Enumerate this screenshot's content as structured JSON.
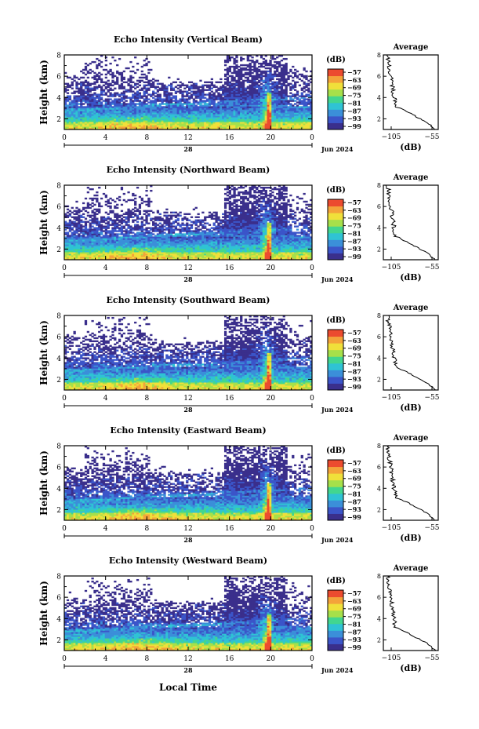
{
  "figure": {
    "x_axis_title": "Local Time",
    "date_label": "Jun 2024",
    "colorbar_unit": "(dB)",
    "colorbar_ticks": [
      "−57",
      "−63",
      "−69",
      "−75",
      "−81",
      "−87",
      "−93",
      "−99"
    ],
    "profile_title": "Average",
    "profile_xlabel": "(dB)"
  },
  "chart_data": [
    {
      "type": "heatmap",
      "title": "Echo Intensity (Vertical Beam)",
      "ylabel": "Height (km)",
      "x_ticks": [
        "0",
        "4",
        "8",
        "12",
        "16",
        "20",
        "0"
      ],
      "x_day_label": "28",
      "y_ticks": [
        "2",
        "4",
        "6",
        "8"
      ],
      "xlim": [
        0,
        24
      ],
      "ylim": [
        1,
        8
      ],
      "zlim": [
        -99,
        -57
      ],
      "colormap": [
        "#3a2f8c",
        "#3b55c9",
        "#3b8fd9",
        "#2fc3d4",
        "#42d68f",
        "#a6e04a",
        "#f0e03a",
        "#f4a33a",
        "#ec4b2f"
      ],
      "profile": {
        "xlim": [
          -105,
          -55
        ],
        "x_ticks": [
          "−105",
          "−55"
        ],
        "y_ticks": [
          "2",
          "4",
          "6",
          "8"
        ]
      }
    },
    {
      "type": "heatmap",
      "title": "Echo Intensity (Northward Beam)",
      "ylabel": "Height (km)",
      "x_ticks": [
        "0",
        "4",
        "8",
        "12",
        "16",
        "20",
        "0"
      ],
      "x_day_label": "28",
      "y_ticks": [
        "2",
        "4",
        "6",
        "8"
      ],
      "xlim": [
        0,
        24
      ],
      "ylim": [
        1,
        8
      ],
      "zlim": [
        -99,
        -57
      ],
      "profile": {
        "xlim": [
          -105,
          -55
        ],
        "x_ticks": [
          "−105",
          "−55"
        ],
        "y_ticks": [
          "2",
          "4",
          "6",
          "8"
        ]
      }
    },
    {
      "type": "heatmap",
      "title": "Echo Intensity (Southward Beam)",
      "ylabel": "Height (km)",
      "x_ticks": [
        "0",
        "4",
        "8",
        "12",
        "16",
        "20",
        "0"
      ],
      "x_day_label": "28",
      "y_ticks": [
        "2",
        "4",
        "6",
        "8"
      ],
      "xlim": [
        0,
        24
      ],
      "ylim": [
        1,
        8
      ],
      "zlim": [
        -99,
        -57
      ],
      "profile": {
        "xlim": [
          -105,
          -55
        ],
        "x_ticks": [
          "−105",
          "−55"
        ],
        "y_ticks": [
          "2",
          "4",
          "6",
          "8"
        ]
      }
    },
    {
      "type": "heatmap",
      "title": "Echo Intensity (Eastward Beam)",
      "ylabel": "Height (km)",
      "x_ticks": [
        "0",
        "4",
        "8",
        "12",
        "16",
        "20",
        "0"
      ],
      "x_day_label": "28",
      "y_ticks": [
        "2",
        "4",
        "6",
        "8"
      ],
      "xlim": [
        0,
        24
      ],
      "ylim": [
        1,
        8
      ],
      "zlim": [
        -99,
        -57
      ],
      "profile": {
        "xlim": [
          -105,
          -55
        ],
        "x_ticks": [
          "−105",
          "−55"
        ],
        "y_ticks": [
          "2",
          "4",
          "6",
          "8"
        ]
      }
    },
    {
      "type": "heatmap",
      "title": "Echo Intensity (Westward Beam)",
      "ylabel": "Height (km)",
      "x_ticks": [
        "0",
        "4",
        "8",
        "12",
        "16",
        "20",
        "0"
      ],
      "x_day_label": "28",
      "y_ticks": [
        "2",
        "4",
        "6",
        "8"
      ],
      "xlim": [
        0,
        24
      ],
      "ylim": [
        1,
        8
      ],
      "zlim": [
        -99,
        -57
      ],
      "profile": {
        "xlim": [
          -105,
          -55
        ],
        "x_ticks": [
          "−105",
          "−55"
        ],
        "y_ticks": [
          "2",
          "4",
          "6",
          "8"
        ]
      }
    }
  ]
}
